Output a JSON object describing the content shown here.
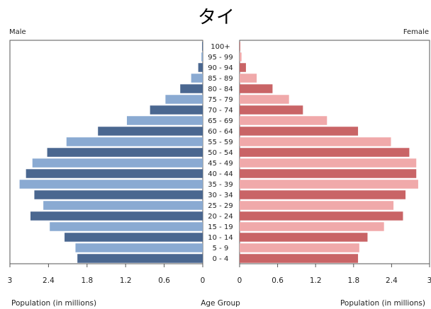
{
  "chart_data": {
    "type": "bar",
    "subtype": "population-pyramid",
    "title": "タイ",
    "left_label": "Male",
    "right_label": "Female",
    "categories": [
      "0 - 4",
      "5 - 9",
      "10 - 14",
      "15 - 19",
      "20 - 24",
      "25 - 29",
      "30 - 34",
      "35 - 39",
      "40 - 44",
      "45 - 49",
      "50 - 54",
      "55 - 59",
      "60 - 64",
      "65 - 69",
      "70 - 74",
      "75 - 79",
      "80 - 84",
      "85 - 89",
      "90 - 94",
      "95 - 99",
      "100+"
    ],
    "series": [
      {
        "name": "Male",
        "values": [
          1.95,
          1.98,
          2.15,
          2.38,
          2.68,
          2.48,
          2.62,
          2.85,
          2.75,
          2.65,
          2.42,
          2.12,
          1.63,
          1.18,
          0.82,
          0.58,
          0.35,
          0.18,
          0.07,
          0.02,
          0.01
        ]
      },
      {
        "name": "Female",
        "values": [
          1.87,
          1.89,
          2.02,
          2.28,
          2.58,
          2.43,
          2.62,
          2.82,
          2.79,
          2.79,
          2.68,
          2.39,
          1.87,
          1.38,
          1.0,
          0.78,
          0.52,
          0.27,
          0.1,
          0.03,
          0.01
        ]
      }
    ],
    "x_ticks_left": [
      "3",
      "2.4",
      "1.8",
      "1.2",
      "0.6",
      "0"
    ],
    "x_ticks_right": [
      "0",
      "0.6",
      "1.2",
      "1.8",
      "2.4",
      "3"
    ],
    "xlim": [
      0,
      3
    ],
    "xlabel_left": "Population (in millions)",
    "xlabel_center": "Age Group",
    "xlabel_right": "Population (in millions)",
    "colors": {
      "male_dark": "#4a6790",
      "male_light": "#8aaad2",
      "female_dark": "#c96466",
      "female_light": "#f0a9aa",
      "axis": "#555555"
    }
  }
}
